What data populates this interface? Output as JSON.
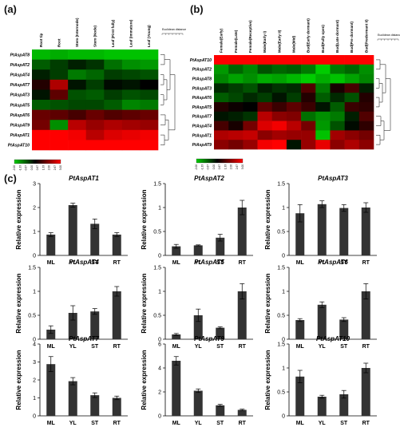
{
  "panels": {
    "a": "(a)",
    "b": "(b)",
    "c": "(c)"
  },
  "heatmap_a": {
    "columns": [
      "Root tip",
      "Root",
      "Stem (Internode)",
      "Stem (Node)",
      "Leaf (First fully)",
      "Leaf (Immature)",
      "Leaf (Young)"
    ],
    "rows": [
      "PtAspAT8",
      "PtAspAT2",
      "PtAspAT4",
      "PtAspAT7",
      "PtAspAT3",
      "PtAspAT5",
      "PtAspAT6",
      "PtAspAT9",
      "PtAspAT1",
      "PtAspAT10"
    ],
    "values": [
      [
        -1.8,
        -1.7,
        -1.8,
        -1.8,
        -1.9,
        -1.9,
        -1.9
      ],
      [
        -0.9,
        -0.6,
        -0.3,
        -0.5,
        -1.1,
        -1.4,
        -1.5
      ],
      [
        -0.3,
        -0.6,
        -1.2,
        -1.0,
        -0.6,
        -0.7,
        -0.8
      ],
      [
        0.3,
        1.5,
        -0.2,
        -0.6,
        -0.1,
        -0.2,
        0.0
      ],
      [
        -0.2,
        0.8,
        -0.8,
        -0.9,
        -0.6,
        -0.8,
        -0.7
      ],
      [
        -0.9,
        -0.8,
        -0.7,
        -0.7,
        -0.9,
        -1.3,
        -1.2
      ],
      [
        0.9,
        0.8,
        0.6,
        0.9,
        0.7,
        0.8,
        0.9
      ],
      [
        1.0,
        -1.4,
        1.6,
        1.3,
        1.5,
        1.4,
        1.3
      ],
      [
        2.4,
        2.2,
        2.1,
        1.6,
        1.9,
        2.0,
        2.1
      ],
      [
        2.9,
        2.8,
        2.6,
        2.3,
        2.2,
        2.7,
        2.6
      ]
    ],
    "scale_ticks": [
      "-2.00",
      "-1.33",
      "-0.67",
      "0.00",
      "0.67",
      "1.33",
      "2.00",
      "2.67",
      "3.00"
    ],
    "dist_label": "Euclidean distance"
  },
  "heatmap_b": {
    "columns": [
      "Female(Early)",
      "Female(Late)",
      "Female(Receptive)",
      "Male(Early I)",
      "Male(Early II)",
      "Male(Mid)",
      "Bud(Early dormant)",
      "Bud(Fully open)",
      "Bud(Late dormant)",
      "Bud(Pre dormant)",
      "Bud(Predormant II)"
    ],
    "rows": [
      "PtAspAT10",
      "PtAspAT2",
      "PtAspAT8",
      "PtAspAT3",
      "PtAspAT6",
      "PtAspAT5",
      "PtAspAT7",
      "PtAspAT4",
      "PtAspAT1",
      "PtAspAT9"
    ],
    "values": [
      [
        3.0,
        3.0,
        3.0,
        3.0,
        3.0,
        3.0,
        2.7,
        3.0,
        2.6,
        3.0,
        3.0
      ],
      [
        -1.5,
        -1.0,
        -1.3,
        -0.8,
        -1.0,
        -0.9,
        -1.2,
        -2.0,
        -1.2,
        -1.0,
        -1.4
      ],
      [
        -1.3,
        -1.6,
        -1.4,
        -1.7,
        -1.6,
        -1.8,
        -2.0,
        -1.7,
        -1.9,
        -1.6,
        -1.3
      ],
      [
        -0.4,
        -0.6,
        -0.8,
        -0.3,
        -0.5,
        -0.4,
        0.7,
        -1.2,
        0.2,
        0.6,
        -0.3
      ],
      [
        -0.9,
        -0.7,
        -0.4,
        -0.6,
        -0.2,
        -0.6,
        0.3,
        -0.9,
        -0.4,
        -0.8,
        0.3
      ],
      [
        0.3,
        0.1,
        0.0,
        0.8,
        0.5,
        0.8,
        0.5,
        -0.2,
        -0.9,
        0.5,
        0.4
      ],
      [
        -0.2,
        -0.3,
        -0.5,
        1.6,
        1.2,
        1.1,
        -1.1,
        -1.4,
        -1.2,
        -0.3,
        0.7
      ],
      [
        0.6,
        0.2,
        1.0,
        1.9,
        2.1,
        1.6,
        1.0,
        -1.5,
        -0.8,
        -0.1,
        0.4
      ],
      [
        1.5,
        1.6,
        1.7,
        1.2,
        1.4,
        1.3,
        1.3,
        -1.9,
        1.4,
        1.2,
        1.0
      ],
      [
        1.2,
        1.0,
        1.3,
        2.1,
        2.2,
        -0.2,
        1.3,
        2.0,
        1.2,
        1.5,
        1.2
      ]
    ],
    "scale_ticks": [
      "-2.00",
      "-1.33",
      "-0.67",
      "0.00",
      "0.67",
      "1.33",
      "2.00",
      "2.67",
      "3.00"
    ],
    "dist_label": "Euclidean distance"
  },
  "chart_data": [
    {
      "type": "bar",
      "title": "PtAspAT1",
      "categories": [
        "ML",
        "YL",
        "ST",
        "RT"
      ],
      "values": [
        0.87,
        2.1,
        1.32,
        0.87
      ],
      "errors": [
        0.08,
        0.08,
        0.2,
        0.08
      ],
      "ylabel": "Relative expression",
      "ylim": [
        0,
        3
      ],
      "yticks": [
        "0",
        "1",
        "2",
        "3"
      ]
    },
    {
      "type": "bar",
      "title": "PtAspAT2",
      "categories": [
        "ML",
        "YL",
        "ST",
        "RT"
      ],
      "values": [
        0.19,
        0.21,
        0.37,
        1.0
      ],
      "errors": [
        0.04,
        0.01,
        0.07,
        0.15
      ],
      "ylabel": "Relative expression",
      "ylim": [
        0,
        1.5
      ],
      "yticks": [
        "0",
        "0.5",
        "1",
        "1.5"
      ]
    },
    {
      "type": "bar",
      "title": "PtAspAT3",
      "categories": [
        "ML",
        "YL",
        "ST",
        "RT"
      ],
      "values": [
        0.88,
        1.07,
        0.99,
        1.0
      ],
      "errors": [
        0.18,
        0.07,
        0.07,
        0.1
      ],
      "ylabel": "Relative expression",
      "ylim": [
        0,
        1.5
      ],
      "yticks": [
        "0",
        "0.5",
        "1",
        "1.5"
      ]
    },
    {
      "type": "bar",
      "title": "PtAspAT4",
      "categories": [
        "ML",
        "YL",
        "ST",
        "RT"
      ],
      "values": [
        0.2,
        0.55,
        0.58,
        1.0
      ],
      "errors": [
        0.08,
        0.15,
        0.06,
        0.1
      ],
      "ylabel": "Relative expression",
      "ylim": [
        0,
        1.5
      ],
      "yticks": [
        "0",
        "0.5",
        "1",
        "1.5"
      ]
    },
    {
      "type": "bar",
      "title": "PtAspAT5",
      "categories": [
        "ML",
        "YL",
        "ST",
        "RT"
      ],
      "values": [
        0.1,
        0.5,
        0.24,
        1.0
      ],
      "errors": [
        0.02,
        0.13,
        0.02,
        0.16
      ],
      "ylabel": "Relative expression",
      "ylim": [
        0,
        1.5
      ],
      "yticks": [
        "0",
        "0.5",
        "1",
        "1.5"
      ]
    },
    {
      "type": "bar",
      "title": "PtAspAT6",
      "categories": [
        "ML",
        "YL",
        "ST",
        "RT"
      ],
      "values": [
        0.4,
        0.72,
        0.41,
        1.0
      ],
      "errors": [
        0.03,
        0.06,
        0.04,
        0.16
      ],
      "ylabel": "Relative expression",
      "ylim": [
        0,
        1.5
      ],
      "yticks": [
        "0",
        "0.5",
        "1",
        "1.5"
      ]
    },
    {
      "type": "bar",
      "title": "PtAspAT7",
      "categories": [
        "ML",
        "YL",
        "ST",
        "RT"
      ],
      "values": [
        2.88,
        1.93,
        1.15,
        1.0
      ],
      "errors": [
        0.42,
        0.2,
        0.13,
        0.1
      ],
      "ylabel": "Relative expression",
      "ylim": [
        0,
        4
      ],
      "yticks": [
        "0",
        "1",
        "2",
        "3",
        "4"
      ]
    },
    {
      "type": "bar",
      "title": "PtAspAT9",
      "categories": [
        "ML",
        "YL",
        "ST",
        "RT"
      ],
      "values": [
        4.6,
        2.1,
        0.88,
        0.5
      ],
      "errors": [
        0.35,
        0.15,
        0.08,
        0.06
      ],
      "ylabel": "Relative expression",
      "ylim": [
        0,
        6
      ],
      "yticks": [
        "0",
        "2",
        "4",
        "6"
      ]
    },
    {
      "type": "bar",
      "title": "PtAspAT10",
      "categories": [
        "ML",
        "YL",
        "ST",
        "RT"
      ],
      "values": [
        0.82,
        0.4,
        0.45,
        1.0
      ],
      "errors": [
        0.13,
        0.03,
        0.08,
        0.1
      ],
      "ylabel": "Relative expression",
      "ylim": [
        0,
        1.5
      ],
      "yticks": [
        "0",
        "0.5",
        "1",
        "1.5"
      ]
    }
  ],
  "colors": {
    "bar": "#333333",
    "heat_low": "#00cc00",
    "heat_mid": "#000000",
    "heat_high": "#ff0000"
  }
}
